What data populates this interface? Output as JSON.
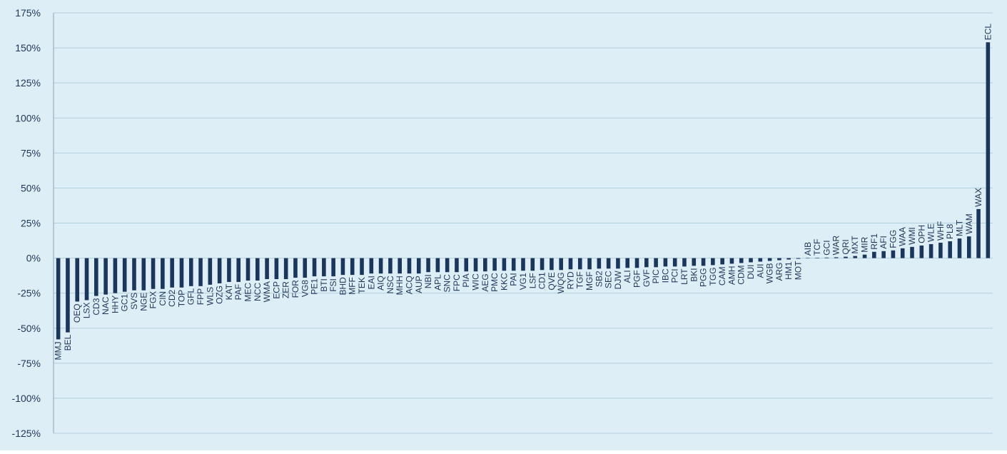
{
  "chart_data": {
    "type": "bar",
    "title": "",
    "xlabel": "",
    "ylabel": "",
    "ylim": [
      -125,
      175
    ],
    "y_ticks": [
      -125,
      -100,
      -75,
      -50,
      -25,
      0,
      25,
      50,
      75,
      100,
      125,
      150,
      175
    ],
    "y_tick_labels": [
      "-125%",
      "-100%",
      "-75%",
      "-50%",
      "-25%",
      "0%",
      "25%",
      "50%",
      "75%",
      "100%",
      "125%",
      "150%",
      "175%"
    ],
    "grid": true,
    "legend": "none",
    "colors": {
      "background": "#deeef6",
      "bar": "#1b365d",
      "grid": "#b4cfdc",
      "text": "#1f3559"
    },
    "categories": [
      "MMJ",
      "BEL",
      "OEQ",
      "LSX",
      "CD3",
      "NAC",
      "HHY",
      "GC1",
      "SVS",
      "NGE",
      "FGX",
      "CIN",
      "CD2",
      "TOP",
      "GFL",
      "FPP",
      "WLS",
      "OZG",
      "KAT",
      "PAF",
      "MEC",
      "NCC",
      "WMA",
      "ECP",
      "ZER",
      "FOR",
      "VG8",
      "PE1",
      "BTI",
      "FSI",
      "BHD",
      "MFF",
      "TEK",
      "EAI",
      "AIQ",
      "NSC",
      "MHH",
      "ACQ",
      "AUP",
      "NBI",
      "APL",
      "SNC",
      "FPC",
      "PIA",
      "WIC",
      "AEG",
      "PMC",
      "KKC",
      "PAI",
      "VG1",
      "LSF",
      "CD1",
      "QVE",
      "WQG",
      "RYD",
      "TGF",
      "MGF",
      "SB2",
      "SEC",
      "DJW",
      "ALI",
      "PGF",
      "GVF",
      "PIC",
      "IBC",
      "PCI",
      "LRT",
      "BKI",
      "PGG",
      "TGG",
      "CAM",
      "AMH",
      "CDM",
      "DUI",
      "AUI",
      "WGB",
      "ARG",
      "HM1",
      "MOT",
      "AIB",
      "TCF",
      "GCI",
      "WAR",
      "QRI",
      "MXT",
      "MIR",
      "RF1",
      "AFI",
      "FGG",
      "WAA",
      "WMI",
      "OPH",
      "WLE",
      "WHF",
      "PL8",
      "MLT",
      "WAM",
      "WAX",
      "ECL"
    ],
    "values": [
      -58,
      -53,
      -31,
      -30,
      -27,
      -26,
      -25,
      -24,
      -23,
      -23,
      -22,
      -22,
      -21,
      -21,
      -20,
      -20,
      -19,
      -18,
      -17,
      -17,
      -16,
      -16,
      -15,
      -15,
      -15,
      -14,
      -14,
      -13,
      -13,
      -13,
      -12,
      -12,
      -12,
      -11,
      -11,
      -11,
      -11,
      -11,
      -11,
      -10,
      -10,
      -10,
      -10,
      -9.5,
      -9.5,
      -9.5,
      -9,
      -9,
      -9,
      -9,
      -9,
      -8.5,
      -8.5,
      -8.5,
      -8,
      -8,
      -8,
      -7.5,
      -7.5,
      -7.5,
      -7,
      -7,
      -6.5,
      -6.5,
      -6,
      -6,
      -6,
      -5.5,
      -5.5,
      -5,
      -4.5,
      -4,
      -3.5,
      -3,
      -2.5,
      -2,
      -1.5,
      -1,
      -0.5,
      0.2,
      0.3,
      0.4,
      0.6,
      1,
      1.5,
      2.5,
      4.5,
      5,
      5.5,
      7,
      8,
      9,
      10,
      11,
      12,
      14,
      15.5,
      35,
      154
    ]
  }
}
